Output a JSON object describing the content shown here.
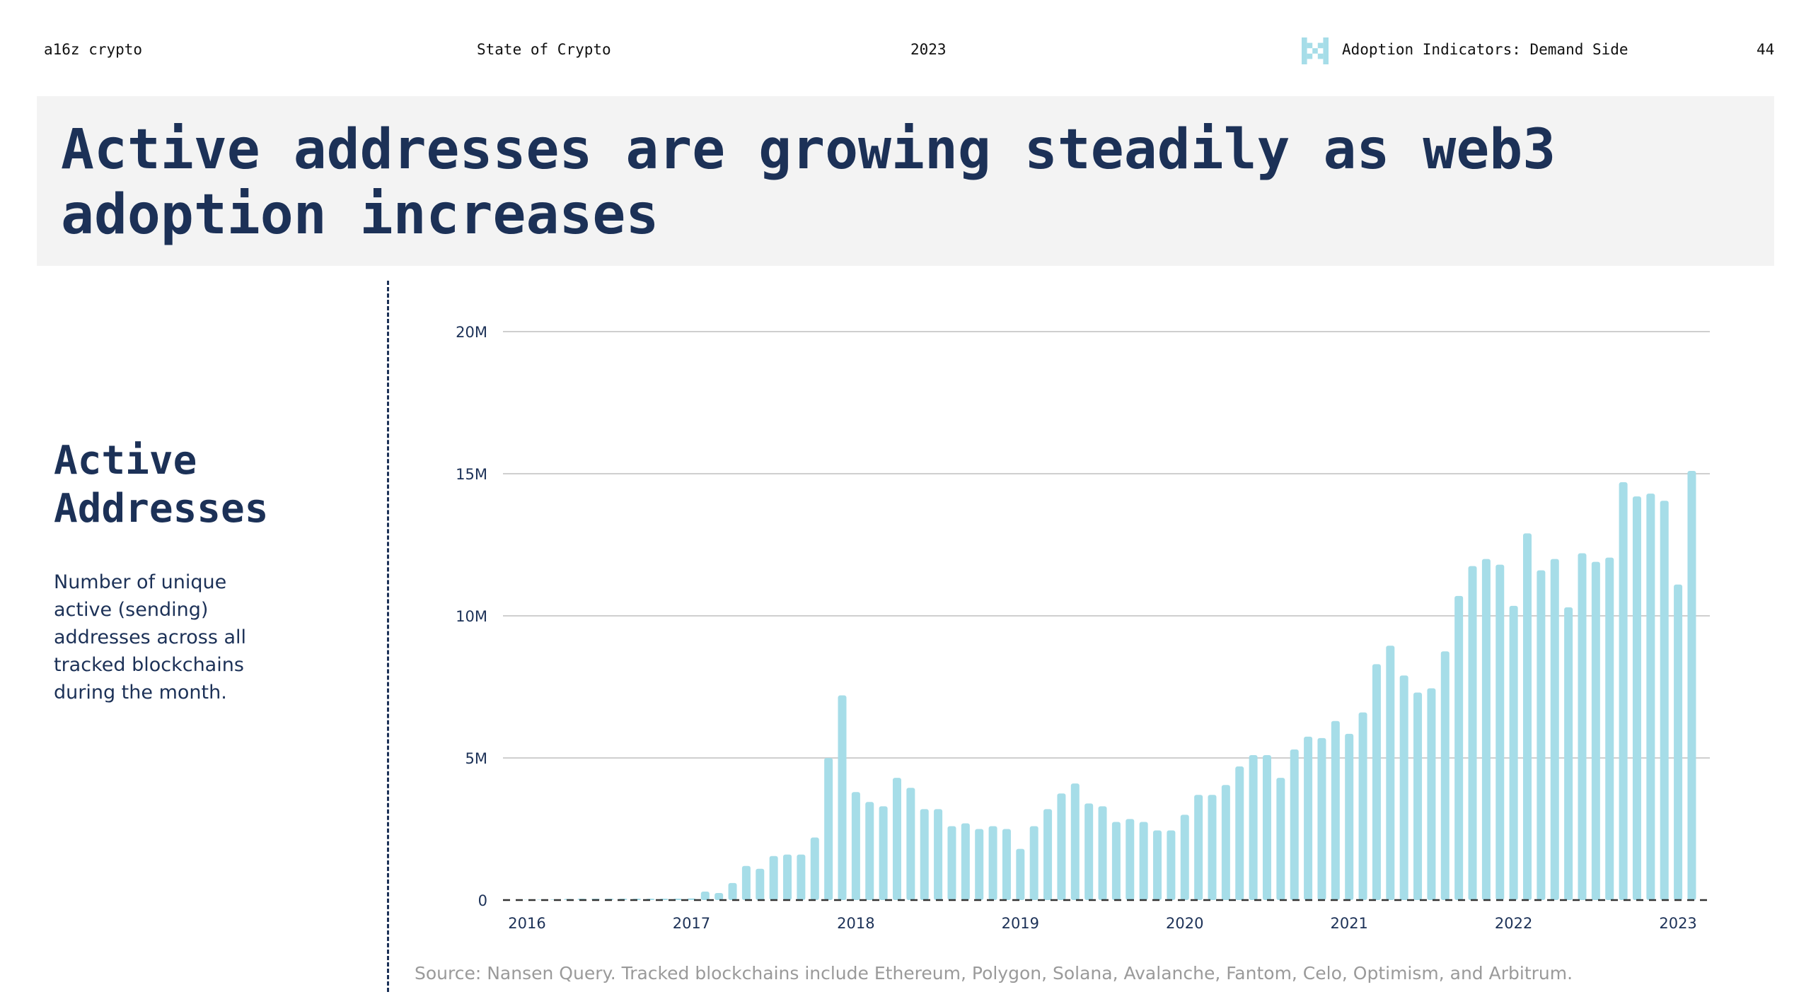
{
  "header": {
    "brand": "a16z crypto",
    "report": "State of Crypto",
    "year": "2023",
    "section": "Adoption Indicators: Demand Side",
    "page": "44",
    "logo_icon": "pixel-x-logo-icon",
    "logo_color": "#a6dde8"
  },
  "title": "Active addresses are growing steadily as web3 adoption increases",
  "sidebar": {
    "heading": "Active Addresses",
    "description": "Number of unique active (sending) addresses across all tracked blockchains during the month."
  },
  "source": "Source: Nansen Query. Tracked blockchains include Ethereum, Polygon, Solana, Avalanche, Fantom, Celo, Optimism, and Arbitrum.",
  "chart_data": {
    "type": "bar",
    "xlabel": "",
    "ylabel": "",
    "ylim": [
      0,
      20000000
    ],
    "yticks": [
      {
        "value": 0,
        "label": "0"
      },
      {
        "value": 5000000,
        "label": "5M"
      },
      {
        "value": 10000000,
        "label": "10M"
      },
      {
        "value": 15000000,
        "label": "15M"
      },
      {
        "value": 20000000,
        "label": "20M"
      }
    ],
    "xticks": [
      {
        "month": "2016-01",
        "label": "2016"
      },
      {
        "month": "2017-01",
        "label": "2017"
      },
      {
        "month": "2018-01",
        "label": "2018"
      },
      {
        "month": "2019-01",
        "label": "2019"
      },
      {
        "month": "2020-01",
        "label": "2020"
      },
      {
        "month": "2021-01",
        "label": "2021"
      },
      {
        "month": "2022-01",
        "label": "2022"
      },
      {
        "month": "2023-01",
        "label": "2023"
      }
    ],
    "grid": true,
    "bar_color": "#a6dde8",
    "categories": [
      "2016-01",
      "2016-02",
      "2016-03",
      "2016-04",
      "2016-05",
      "2016-06",
      "2016-07",
      "2016-08",
      "2016-09",
      "2016-10",
      "2016-11",
      "2016-12",
      "2017-01",
      "2017-02",
      "2017-03",
      "2017-04",
      "2017-05",
      "2017-06",
      "2017-07",
      "2017-08",
      "2017-09",
      "2017-10",
      "2017-11",
      "2017-12",
      "2018-01",
      "2018-02",
      "2018-03",
      "2018-04",
      "2018-05",
      "2018-06",
      "2018-07",
      "2018-08",
      "2018-09",
      "2018-10",
      "2018-11",
      "2018-12",
      "2019-01",
      "2019-02",
      "2019-03",
      "2019-04",
      "2019-05",
      "2019-06",
      "2019-07",
      "2019-08",
      "2019-09",
      "2019-10",
      "2019-11",
      "2019-12",
      "2020-01",
      "2020-02",
      "2020-03",
      "2020-04",
      "2020-05",
      "2020-06",
      "2020-07",
      "2020-08",
      "2020-09",
      "2020-10",
      "2020-11",
      "2020-12",
      "2021-01",
      "2021-02",
      "2021-03",
      "2021-04",
      "2021-05",
      "2021-06",
      "2021-07",
      "2021-08",
      "2021-09",
      "2021-10",
      "2021-11",
      "2021-12",
      "2022-01",
      "2022-02",
      "2022-03",
      "2022-04",
      "2022-05",
      "2022-06",
      "2022-07",
      "2022-08",
      "2022-09",
      "2022-10",
      "2022-11",
      "2022-12",
      "2023-01",
      "2023-02"
    ],
    "values": [
      10000,
      15000,
      20000,
      40000,
      50000,
      50000,
      50000,
      50000,
      50000,
      50000,
      50000,
      50000,
      60000,
      300000,
      250000,
      600000,
      1200000,
      1100000,
      1550000,
      1600000,
      1600000,
      2200000,
      5000000,
      7200000,
      3800000,
      3450000,
      3300000,
      4300000,
      3950000,
      3200000,
      3200000,
      2600000,
      2700000,
      2500000,
      2600000,
      2500000,
      1800000,
      2600000,
      3200000,
      3750000,
      4100000,
      3400000,
      3300000,
      2750000,
      2850000,
      2750000,
      2450000,
      2450000,
      3000000,
      3700000,
      3700000,
      4050000,
      4700000,
      5100000,
      5100000,
      4300000,
      5300000,
      5750000,
      5700000,
      6300000,
      5850000,
      6600000,
      8300000,
      8950000,
      7900000,
      7300000,
      7450000,
      8750000,
      10700000,
      11750000,
      12000000,
      11800000,
      10350000,
      12900000,
      11600000,
      12000000,
      10300000,
      12200000,
      11900000,
      12050000,
      14700000,
      14200000,
      14300000,
      14050000,
      11100000,
      15100000
    ]
  }
}
